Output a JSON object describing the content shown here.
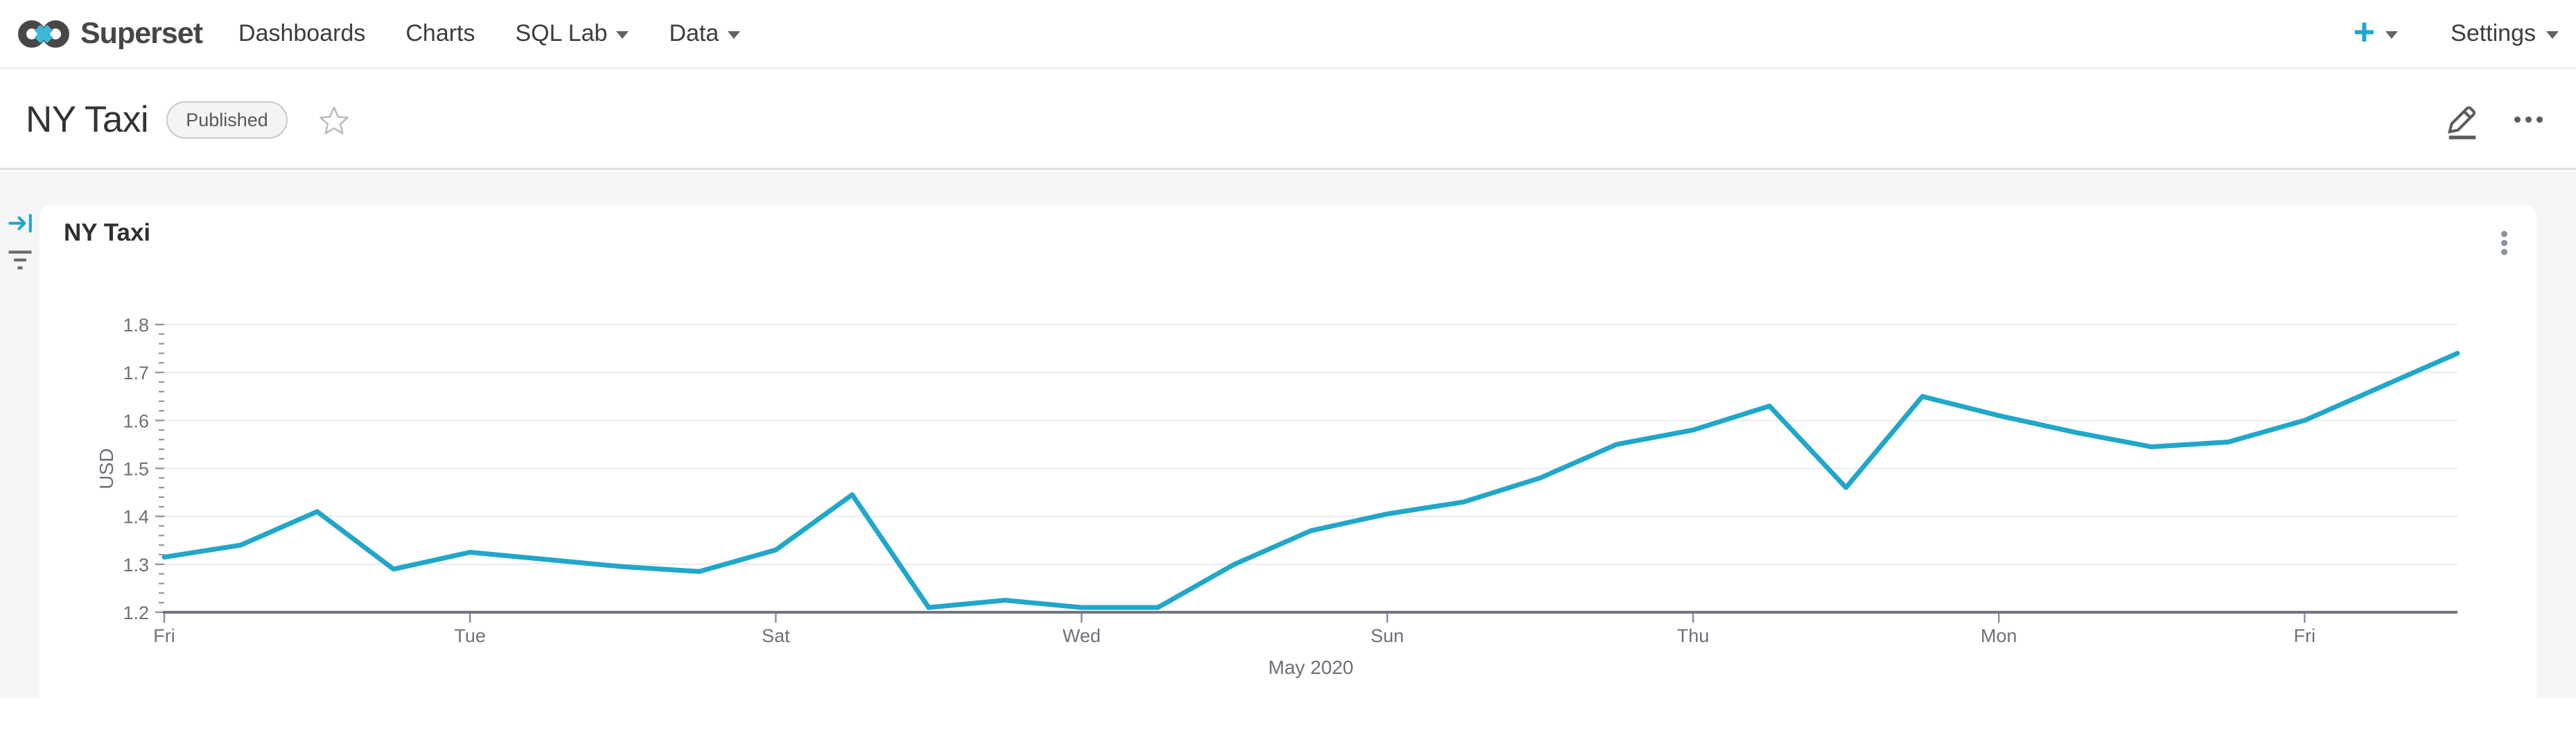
{
  "navbar": {
    "brand": "Superset",
    "items": [
      {
        "label": "Dashboards",
        "has_caret": false
      },
      {
        "label": "Charts",
        "has_caret": false
      },
      {
        "label": "SQL Lab",
        "has_caret": true
      },
      {
        "label": "Data",
        "has_caret": true
      }
    ],
    "plus_label": "+",
    "settings_label": "Settings"
  },
  "header": {
    "title": "NY Taxi",
    "badge": "Published"
  },
  "dashboard": {
    "chart_title": "NY Taxi"
  },
  "colors": {
    "accent": "#20a7c9",
    "logo_accent": "#3cb9d9",
    "line": "#20a7c9",
    "page_background": "#f6f6f7",
    "grid": "#e9ebf1",
    "axis": "#73757e",
    "tick_label": "#6e7079"
  },
  "chart_data": {
    "type": "line",
    "title": "NY Taxi",
    "ylabel": "USD",
    "xlabel": "May 2020",
    "x": [
      "2020-05-01",
      "2020-05-02",
      "2020-05-03",
      "2020-05-04",
      "2020-05-05",
      "2020-05-06",
      "2020-05-07",
      "2020-05-08",
      "2020-05-09",
      "2020-05-10",
      "2020-05-11",
      "2020-05-12",
      "2020-05-13",
      "2020-05-14",
      "2020-05-15",
      "2020-05-16",
      "2020-05-17",
      "2020-05-18",
      "2020-05-19",
      "2020-05-20",
      "2020-05-21",
      "2020-05-22",
      "2020-05-23",
      "2020-05-24",
      "2020-05-25",
      "2020-05-26",
      "2020-05-27",
      "2020-05-28",
      "2020-05-29",
      "2020-05-30",
      "2020-05-31"
    ],
    "values": [
      1.315,
      1.34,
      1.41,
      1.29,
      1.325,
      1.31,
      1.295,
      1.285,
      1.33,
      1.445,
      1.21,
      1.225,
      1.21,
      1.21,
      1.3,
      1.37,
      1.405,
      1.43,
      1.48,
      1.55,
      1.58,
      1.63,
      1.46,
      1.65,
      1.61,
      1.575,
      1.545,
      1.555,
      1.6,
      1.67,
      1.74
    ],
    "ylim": [
      1.2,
      1.8
    ],
    "y_major_ticks": [
      1.2,
      1.3,
      1.4,
      1.5,
      1.6,
      1.7,
      1.8
    ],
    "y_tick_labels": [
      "1.2",
      "1.3",
      "1.4",
      "1.5",
      "1.6",
      "1.7",
      "1.8"
    ],
    "y_minor_step": 0.02,
    "x_tick_indices": [
      0,
      4,
      8,
      12,
      16,
      20,
      24,
      28
    ],
    "x_tick_labels": [
      "Fri",
      "Tue",
      "Sat",
      "Wed",
      "Sun",
      "Thu",
      "Mon",
      "Fri"
    ],
    "line_color": "#20a7c9",
    "grid": true,
    "legend": "none"
  }
}
